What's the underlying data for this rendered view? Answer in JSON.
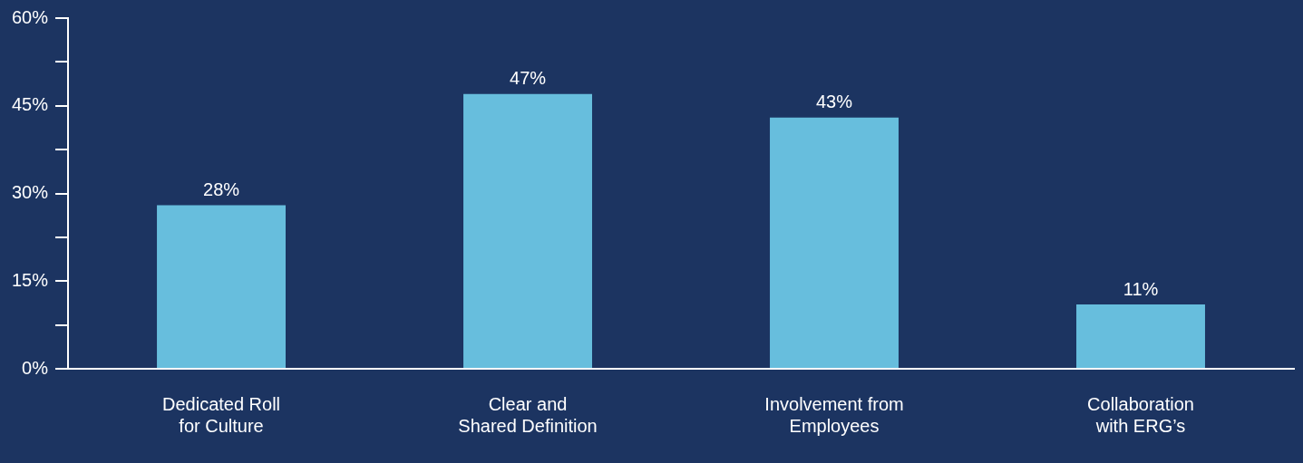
{
  "chart_data": {
    "type": "bar",
    "categories": [
      "Dedicated Roll\nfor Culture",
      "Clear and\nShared Definition",
      "Involvement from\nEmployees",
      "Collaboration\nwith ERG’s"
    ],
    "values": [
      28,
      47,
      43,
      11
    ],
    "color": "#67bedd",
    "value_labels": [
      "28%",
      "47%",
      "43%",
      "11%"
    ],
    "ylim": [
      0,
      60
    ],
    "yticks": [
      {
        "value": 0,
        "label": "0%"
      },
      {
        "value": 7.5,
        "label": null
      },
      {
        "value": 15,
        "label": "15%"
      },
      {
        "value": 22.5,
        "label": null
      },
      {
        "value": 30,
        "label": "30%"
      },
      {
        "value": 37.5,
        "label": null
      },
      {
        "value": 45,
        "label": "45%"
      },
      {
        "value": 52.5,
        "label": null
      },
      {
        "value": 60,
        "label": "60%"
      }
    ],
    "grid": false,
    "legend": false
  }
}
